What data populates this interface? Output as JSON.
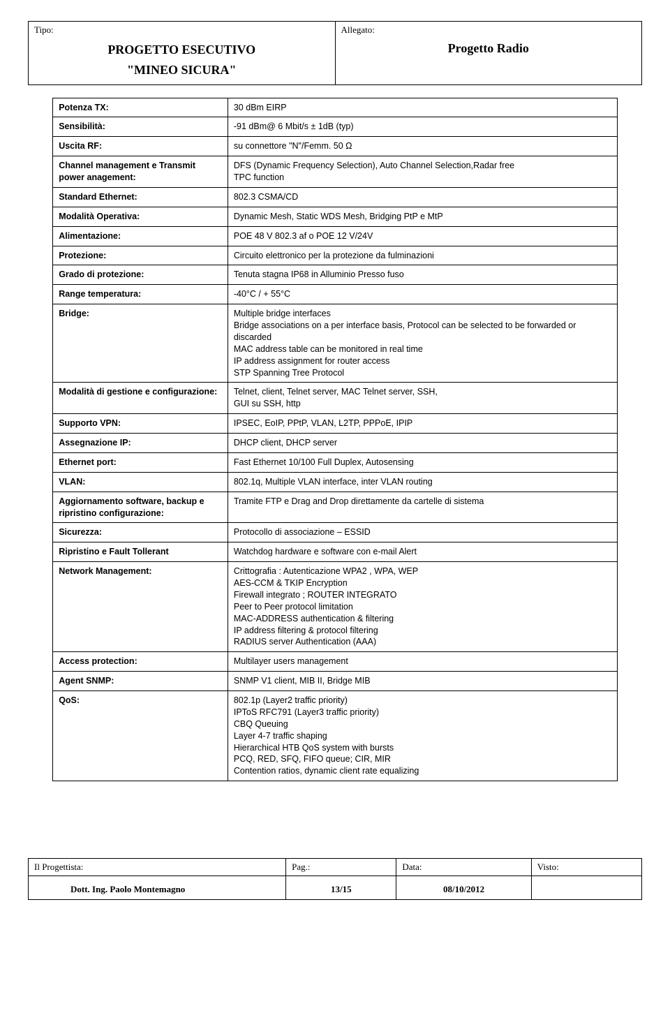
{
  "header": {
    "tipo_label": "Tipo:",
    "titolo_line1": "PROGETTO ESECUTIVO",
    "titolo_line2": "\"MINEO SICURA\"",
    "allegato_label": "Allegato:",
    "allegato_value": "Progetto Radio"
  },
  "spec": {
    "potenza_tx_k": "Potenza TX:",
    "potenza_tx_v": "30 dBm EIRP",
    "sensibilita_k": "Sensibilità:",
    "sensibilita_v": "-91 dBm@ 6 Mbit/s ± 1dB (typ)",
    "uscita_rf_k": "Uscita RF:",
    "uscita_rf_v": "su connettore \"N\"/Femm. 50 Ω",
    "channel_mgmt_k": "Channel management e Transmit power anagement:",
    "channel_mgmt_v": "DFS (Dynamic Frequency Selection), Auto Channel Selection,Radar free\nTPC function",
    "std_eth_k": "Standard Ethernet:",
    "std_eth_v": "802.3 CSMA/CD",
    "modalita_op_k": "Modalità Operativa:",
    "modalita_op_v": "Dynamic Mesh, Static WDS Mesh, Bridging PtP e MtP",
    "alimentazione_k": "Alimentazione:",
    "alimentazione_v": "POE 48 V 802.3 af o POE 12 V/24V",
    "protezione_k": "Protezione:",
    "protezione_v": "Circuito elettronico per la protezione da fulminazioni",
    "grado_prot_k": "Grado di protezione:",
    "grado_prot_v": "Tenuta stagna IP68 in Alluminio Presso fuso",
    "range_temp_k": "Range temperatura:",
    "range_temp_v": "-40°C / + 55°C",
    "bridge_k": "Bridge:",
    "bridge_v": "Multiple bridge interfaces\nBridge associations on a per interface basis, Protocol can be selected to be forwarded or discarded\nMAC address table can be monitored in real time\nIP address assignment for router access\nSTP Spanning Tree Protocol",
    "modalita_gest_k": "Modalità di gestione e configurazione:",
    "modalita_gest_v": "Telnet, client, Telnet server, MAC Telnet server, SSH,\nGUI su SSH, http",
    "supporto_vpn_k": "Supporto VPN:",
    "supporto_vpn_v": "IPSEC, EoIP, PPtP, VLAN, L2TP, PPPoE, IPIP",
    "assegnazione_ip_k": "Assegnazione IP:",
    "assegnazione_ip_v": "DHCP client, DHCP server",
    "ethernet_port_k": "Ethernet port:",
    "ethernet_port_v": "Fast Ethernet 10/100 Full Duplex, Autosensing",
    "vlan_k": "VLAN:",
    "vlan_v": "802.1q, Multiple VLAN interface, inter VLAN routing",
    "aggiornamento_k": "Aggiornamento software, backup e ripristino configurazione:",
    "aggiornamento_v": "Tramite FTP e Drag and Drop direttamente da cartelle di sistema",
    "sicurezza_k": "Sicurezza:",
    "sicurezza_v": "Protocollo di associazione – ESSID",
    "ripristino_k": "Ripristino e Fault Tollerant",
    "ripristino_v": "Watchdog hardware e software con e-mail Alert",
    "network_mgmt_k": "Network Management:",
    "network_mgmt_v": "Crittografia : Autenticazione WPA2 , WPA, WEP\nAES-CCM & TKIP Encryption\nFirewall integrato ; ROUTER INTEGRATO\nPeer to Peer protocol limitation\nMAC-ADDRESS authentication & filtering\nIP address filtering & protocol filtering\nRADIUS server Authentication (AAA)",
    "access_prot_k": "Access protection:",
    "access_prot_v": "Multilayer users management",
    "agent_snmp_k": "Agent SNMP:",
    "agent_snmp_v": "SNMP V1 client, MIB II, Bridge MIB",
    "qos_k": "QoS:",
    "qos_v": "802.1p (Layer2 traffic priority)\nIPToS RFC791 (Layer3 traffic priority)\nCBQ Queuing\nLayer 4-7 traffic shaping\nHierarchical HTB QoS system with bursts\nPCQ, RED, SFQ, FIFO queue; CIR, MIR\nContention ratios, dynamic client rate equalizing"
  },
  "footer": {
    "col1_label": "Il Progettista:",
    "col2_label": "Pag.:",
    "col3_label": "Data:",
    "col4_label": "Visto:",
    "col1_value": "Dott. Ing. Paolo Montemagno",
    "col2_value": "13/15",
    "col3_value": "08/10/2012",
    "col4_value": ""
  }
}
